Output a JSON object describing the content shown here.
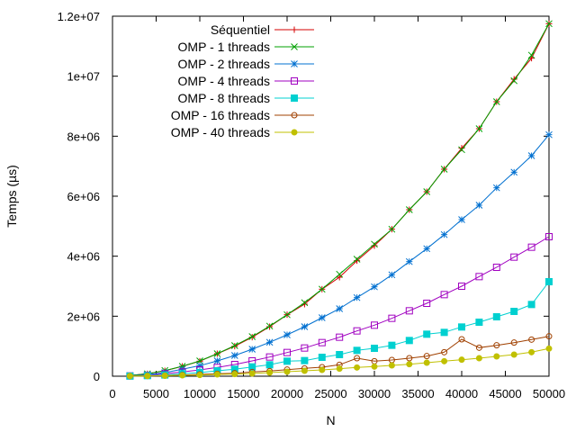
{
  "chart_data": {
    "type": "line",
    "title": "",
    "xlabel": "N",
    "ylabel": "Temps (µs)",
    "xlim": [
      0,
      50000
    ],
    "ylim": [
      0,
      12000000
    ],
    "grid": false,
    "legend_position": "top-left",
    "x_ticks": [
      0,
      5000,
      10000,
      15000,
      20000,
      25000,
      30000,
      35000,
      40000,
      45000,
      50000
    ],
    "x_tick_labels": [
      "0",
      "5000",
      "10000",
      "15000",
      "20000",
      "25000",
      "30000",
      "35000",
      "40000",
      "45000",
      "50000"
    ],
    "y_ticks": [
      0,
      2000000,
      4000000,
      6000000,
      8000000,
      10000000,
      12000000
    ],
    "y_tick_labels": [
      "0",
      "2e+06",
      "4e+06",
      "6e+06",
      "8e+06",
      "1e+07",
      "1.2e+07"
    ],
    "x": [
      2000,
      4000,
      6000,
      8000,
      10000,
      12000,
      14000,
      16000,
      18000,
      20000,
      22000,
      24000,
      26000,
      28000,
      30000,
      32000,
      34000,
      36000,
      38000,
      40000,
      42000,
      44000,
      46000,
      48000,
      50000
    ],
    "series": [
      {
        "name": "Séquentiel",
        "color": "#d40000",
        "marker": "plus",
        "values": [
          20000,
          80000,
          180000,
          330000,
          500000,
          750000,
          1000000,
          1300000,
          1650000,
          2050000,
          2400000,
          2900000,
          3300000,
          3850000,
          4350000,
          4900000,
          5550000,
          6150000,
          6900000,
          7600000,
          8250000,
          9150000,
          9900000,
          10600000,
          11750000
        ]
      },
      {
        "name": "OMP - 1 threads",
        "color": "#00a000",
        "marker": "cross",
        "values": [
          20000,
          80000,
          190000,
          330000,
          510000,
          750000,
          1020000,
          1320000,
          1670000,
          2050000,
          2450000,
          2900000,
          3400000,
          3900000,
          4400000,
          4900000,
          5550000,
          6150000,
          6900000,
          7550000,
          8250000,
          9150000,
          9850000,
          10700000,
          11750000
        ]
      },
      {
        "name": "OMP - 2 threads",
        "color": "#0070d0",
        "marker": "star",
        "values": [
          10000,
          50000,
          120000,
          230000,
          350000,
          510000,
          690000,
          900000,
          1130000,
          1380000,
          1650000,
          1950000,
          2250000,
          2620000,
          2980000,
          3380000,
          3820000,
          4250000,
          4720000,
          5220000,
          5700000,
          6280000,
          6800000,
          7350000,
          8050000
        ]
      },
      {
        "name": "OMP - 4 threads",
        "color": "#a000c0",
        "marker": "open-square",
        "values": [
          10000,
          30000,
          80000,
          140000,
          210000,
          290000,
          390000,
          510000,
          640000,
          790000,
          940000,
          1120000,
          1300000,
          1510000,
          1700000,
          1930000,
          2180000,
          2430000,
          2720000,
          3000000,
          3320000,
          3630000,
          3970000,
          4300000,
          4650000
        ]
      },
      {
        "name": "OMP - 8 threads",
        "color": "#00d0d0",
        "marker": "filled-square",
        "values": [
          5000,
          20000,
          40000,
          80000,
          120000,
          180000,
          230000,
          310000,
          380000,
          500000,
          520000,
          630000,
          720000,
          860000,
          930000,
          1030000,
          1190000,
          1400000,
          1460000,
          1640000,
          1800000,
          1980000,
          2160000,
          2390000,
          3150000
        ]
      },
      {
        "name": "OMP - 16 threads",
        "color": "#a04000",
        "marker": "open-circle",
        "values": [
          5000,
          10000,
          20000,
          40000,
          60000,
          80000,
          100000,
          140000,
          170000,
          220000,
          260000,
          300000,
          380000,
          600000,
          500000,
          540000,
          600000,
          670000,
          800000,
          1230000,
          950000,
          1030000,
          1120000,
          1220000,
          1330000
        ]
      },
      {
        "name": "OMP - 40 threads",
        "color": "#c0c000",
        "marker": "filled-circle",
        "values": [
          3000,
          8000,
          15000,
          30000,
          40000,
          60000,
          70000,
          90000,
          120000,
          150000,
          180000,
          210000,
          250000,
          290000,
          320000,
          360000,
          400000,
          450000,
          500000,
          550000,
          600000,
          660000,
          720000,
          800000,
          920000
        ]
      }
    ]
  }
}
